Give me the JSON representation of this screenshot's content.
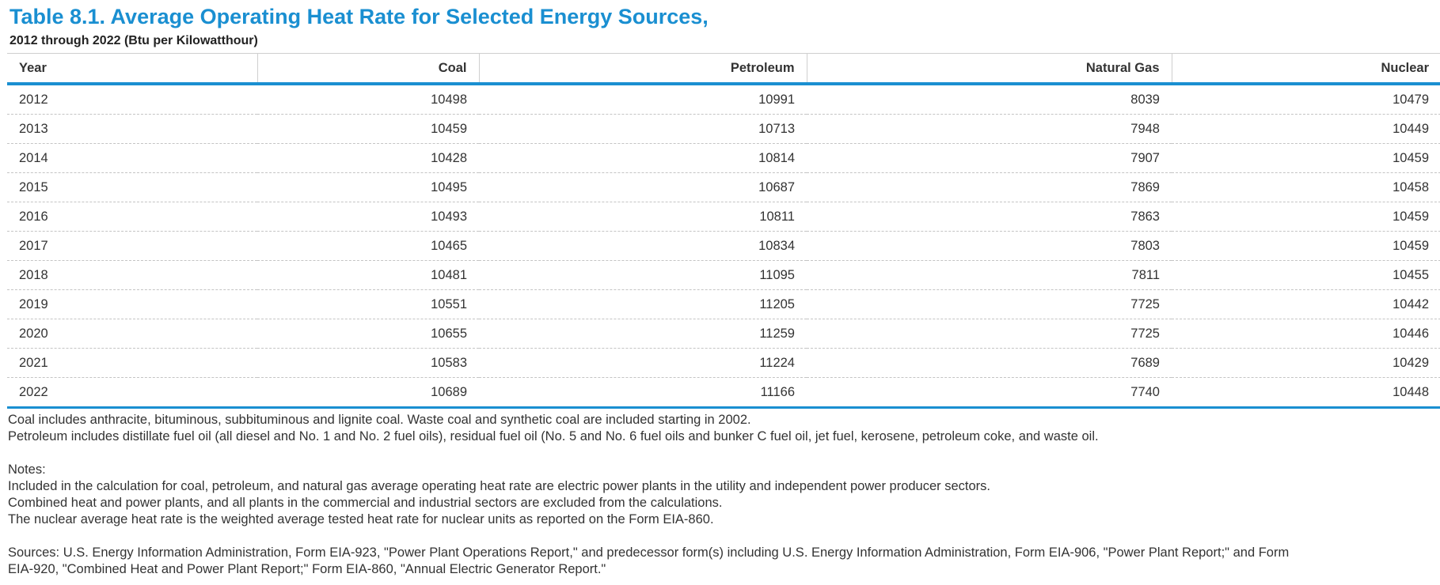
{
  "title": "Table 8.1. Average Operating Heat Rate for Selected Energy Sources,",
  "subtitle": "2012 through 2022 (Btu per Kilowatthour)",
  "columns": [
    "Year",
    "Coal",
    "Petroleum",
    "Natural Gas",
    "Nuclear"
  ],
  "rows": [
    [
      "2012",
      "10498",
      "10991",
      "8039",
      "10479"
    ],
    [
      "2013",
      "10459",
      "10713",
      "7948",
      "10449"
    ],
    [
      "2014",
      "10428",
      "10814",
      "7907",
      "10459"
    ],
    [
      "2015",
      "10495",
      "10687",
      "7869",
      "10458"
    ],
    [
      "2016",
      "10493",
      "10811",
      "7863",
      "10459"
    ],
    [
      "2017",
      "10465",
      "10834",
      "7803",
      "10459"
    ],
    [
      "2018",
      "10481",
      "11095",
      "7811",
      "10455"
    ],
    [
      "2019",
      "10551",
      "11205",
      "7725",
      "10442"
    ],
    [
      "2020",
      "10655",
      "11259",
      "7725",
      "10446"
    ],
    [
      "2021",
      "10583",
      "11224",
      "7689",
      "10429"
    ],
    [
      "2022",
      "10689",
      "11166",
      "7740",
      "10448"
    ]
  ],
  "footnotes": {
    "coal_def": "Coal includes anthracite, bituminous, subbituminous and lignite coal. Waste coal and synthetic coal are included starting in 2002.",
    "petroleum_def": "Petroleum includes distillate fuel oil (all diesel and No. 1 and No. 2 fuel oils), residual fuel oil (No. 5 and No. 6 fuel oils and bunker C fuel oil, jet fuel, kerosene, petroleum coke, and waste oil.",
    "notes_heading": "Notes:",
    "note_1": "Included in the calculation for coal, petroleum, and natural gas average operating heat rate are electric power plants in the utility and independent power producer sectors.",
    "note_2": "Combined heat and power plants, and all plants in the commercial and industrial sectors are excluded from the calculations.",
    "note_3": "The nuclear average heat rate is the weighted average tested heat rate for nuclear units as reported on the Form EIA-860.",
    "sources_line_1": "Sources: U.S. Energy Information Administration, Form EIA-923, \"Power Plant Operations Report,\" and predecessor form(s) including U.S. Energy Information Administration, Form EIA-906, \"Power Plant Report;\" and Form",
    "sources_line_2": "EIA-920, \"Combined Heat and Power Plant Report;\" Form EIA-860, \"Annual Electric Generator Report.\""
  }
}
